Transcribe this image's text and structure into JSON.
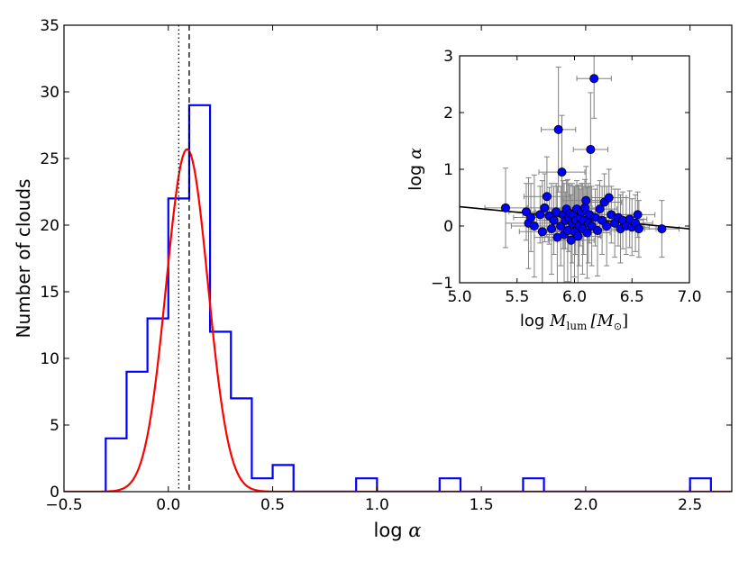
{
  "chart_data": [
    {
      "type": "histogram",
      "panel": "main",
      "xlabel": "log",
      "xlabel_symbol": "α",
      "ylabel": "Number of clouds",
      "xlim": [
        -0.5,
        2.7
      ],
      "ylim": [
        0,
        35
      ],
      "xticks": [
        -0.5,
        0.0,
        0.5,
        1.0,
        1.5,
        2.0,
        2.5
      ],
      "xtick_labels": [
        "−0.5",
        "0.0",
        "0.5",
        "1.0",
        "1.5",
        "2.0",
        "2.5"
      ],
      "yticks": [
        0,
        5,
        10,
        15,
        20,
        25,
        30,
        35
      ],
      "ytick_labels": [
        "0",
        "5",
        "10",
        "15",
        "20",
        "25",
        "30",
        "35"
      ],
      "bin_width": 0.1,
      "bin_left_edges": [
        -0.3,
        -0.2,
        -0.1,
        0.0,
        0.1,
        0.2,
        0.3,
        0.4,
        0.5,
        0.6,
        0.7,
        0.8,
        0.9,
        1.0,
        1.1,
        1.2,
        1.3,
        1.4,
        1.5,
        1.6,
        1.7,
        1.8,
        1.9,
        2.0,
        2.1,
        2.2,
        2.3,
        2.4,
        2.5
      ],
      "counts": [
        4,
        9,
        13,
        22,
        29,
        12,
        7,
        1,
        2,
        0,
        0,
        0,
        1,
        0,
        0,
        0,
        1,
        0,
        0,
        0,
        1,
        0,
        0,
        0,
        0,
        0,
        0,
        0,
        1
      ],
      "gaussian_fit": {
        "amplitude": 25.7,
        "mean": 0.09,
        "sigma": 0.1
      },
      "vlines": [
        {
          "x": 0.05,
          "style": "dotted"
        },
        {
          "x": 0.1,
          "style": "dashed"
        }
      ],
      "colors": {
        "histogram": "#0000ff",
        "fit": "#ff0000",
        "vline": "#000000"
      }
    },
    {
      "type": "scatter",
      "panel": "inset",
      "xlabel": "log",
      "xlabel_symbol": "M",
      "xlabel_subscript": "lum",
      "xlabel_unit": "[M",
      "xlabel_unit_subscript": "⊙",
      "xlabel_unit_close": "]",
      "ylabel": "log",
      "ylabel_symbol": "α",
      "xlim": [
        5.0,
        7.0
      ],
      "ylim": [
        -1,
        3
      ],
      "xticks": [
        5.0,
        5.5,
        6.0,
        6.5,
        7.0
      ],
      "xtick_labels": [
        "5.0",
        "5.5",
        "6.0",
        "6.5",
        "7.0"
      ],
      "yticks": [
        -1,
        0,
        1,
        2,
        3
      ],
      "ytick_labels": [
        "−1",
        "0",
        "1",
        "2",
        "3"
      ],
      "points": [
        [
          5.4,
          0.32,
          0.18,
          0.7
        ],
        [
          5.58,
          0.25,
          0.15,
          0.5
        ],
        [
          5.6,
          0.05,
          0.2,
          0.8
        ],
        [
          5.62,
          0.15,
          0.15,
          0.6
        ],
        [
          5.65,
          0.0,
          0.2,
          0.9
        ],
        [
          5.7,
          0.2,
          0.15,
          0.5
        ],
        [
          5.72,
          -0.1,
          0.2,
          0.9
        ],
        [
          5.74,
          0.32,
          0.15,
          0.6
        ],
        [
          5.76,
          0.52,
          0.2,
          0.7
        ],
        [
          5.78,
          0.18,
          0.15,
          0.5
        ],
        [
          5.8,
          -0.05,
          0.2,
          0.8
        ],
        [
          5.82,
          0.1,
          0.15,
          0.6
        ],
        [
          5.84,
          0.25,
          0.18,
          0.5
        ],
        [
          5.85,
          -0.2,
          0.2,
          0.9
        ],
        [
          5.86,
          1.7,
          0.15,
          1.1
        ],
        [
          5.88,
          0.0,
          0.18,
          0.7
        ],
        [
          5.89,
          0.95,
          0.2,
          1.0
        ],
        [
          5.9,
          0.2,
          0.15,
          0.6
        ],
        [
          5.91,
          -0.15,
          0.2,
          0.9
        ],
        [
          5.92,
          0.1,
          0.18,
          0.5
        ],
        [
          5.93,
          0.3,
          0.15,
          0.5
        ],
        [
          5.94,
          -0.08,
          0.2,
          0.9
        ],
        [
          5.95,
          0.15,
          0.18,
          0.6
        ],
        [
          5.96,
          0.22,
          0.15,
          0.5
        ],
        [
          5.97,
          -0.25,
          0.2,
          0.8
        ],
        [
          5.98,
          0.05,
          0.15,
          0.7
        ],
        [
          5.99,
          0.2,
          0.18,
          0.5
        ],
        [
          6.0,
          -0.1,
          0.2,
          0.8
        ],
        [
          6.01,
          0.1,
          0.15,
          0.6
        ],
        [
          6.02,
          0.3,
          0.18,
          0.5
        ],
        [
          6.03,
          -0.18,
          0.2,
          0.9
        ],
        [
          6.04,
          0.0,
          0.15,
          0.7
        ],
        [
          6.05,
          0.15,
          0.18,
          0.5
        ],
        [
          6.06,
          0.25,
          0.15,
          0.5
        ],
        [
          6.07,
          -0.05,
          0.2,
          0.8
        ],
        [
          6.08,
          0.1,
          0.18,
          0.6
        ],
        [
          6.09,
          0.32,
          0.15,
          0.5
        ],
        [
          6.1,
          0.45,
          0.2,
          0.6
        ],
        [
          6.11,
          -0.12,
          0.2,
          0.8
        ],
        [
          6.12,
          0.05,
          0.15,
          0.7
        ],
        [
          6.13,
          0.2,
          0.18,
          0.5
        ],
        [
          6.14,
          1.35,
          0.15,
          1.0
        ],
        [
          6.15,
          0.0,
          0.2,
          0.7
        ],
        [
          6.17,
          2.6,
          0.15,
          0.7
        ],
        [
          6.18,
          0.15,
          0.18,
          0.5
        ],
        [
          6.2,
          -0.08,
          0.2,
          0.8
        ],
        [
          6.22,
          0.3,
          0.15,
          0.5
        ],
        [
          6.24,
          0.1,
          0.18,
          0.6
        ],
        [
          6.26,
          0.42,
          0.15,
          0.5
        ],
        [
          6.28,
          0.0,
          0.2,
          0.7
        ],
        [
          6.3,
          0.5,
          0.15,
          0.5
        ],
        [
          6.32,
          0.2,
          0.18,
          0.5
        ],
        [
          6.35,
          0.05,
          0.15,
          0.6
        ],
        [
          6.38,
          0.15,
          0.18,
          0.5
        ],
        [
          6.4,
          -0.05,
          0.15,
          0.6
        ],
        [
          6.42,
          0.1,
          0.18,
          0.5
        ],
        [
          6.45,
          0.0,
          0.15,
          0.5
        ],
        [
          6.48,
          0.12,
          0.15,
          0.5
        ],
        [
          6.5,
          -0.02,
          0.15,
          0.5
        ],
        [
          6.53,
          0.05,
          0.15,
          0.5
        ],
        [
          6.55,
          0.2,
          0.15,
          0.4
        ],
        [
          6.56,
          -0.05,
          0.15,
          0.5
        ],
        [
          6.76,
          -0.05,
          0.15,
          0.5
        ]
      ],
      "point_fields": [
        "x",
        "y",
        "x_err",
        "y_err"
      ],
      "fit_line": {
        "x": [
          5.0,
          7.0
        ],
        "y": [
          0.34,
          -0.05
        ]
      },
      "colors": {
        "marker": "#0000ff",
        "errorbar": "#808080",
        "fit": "#000000"
      }
    }
  ]
}
